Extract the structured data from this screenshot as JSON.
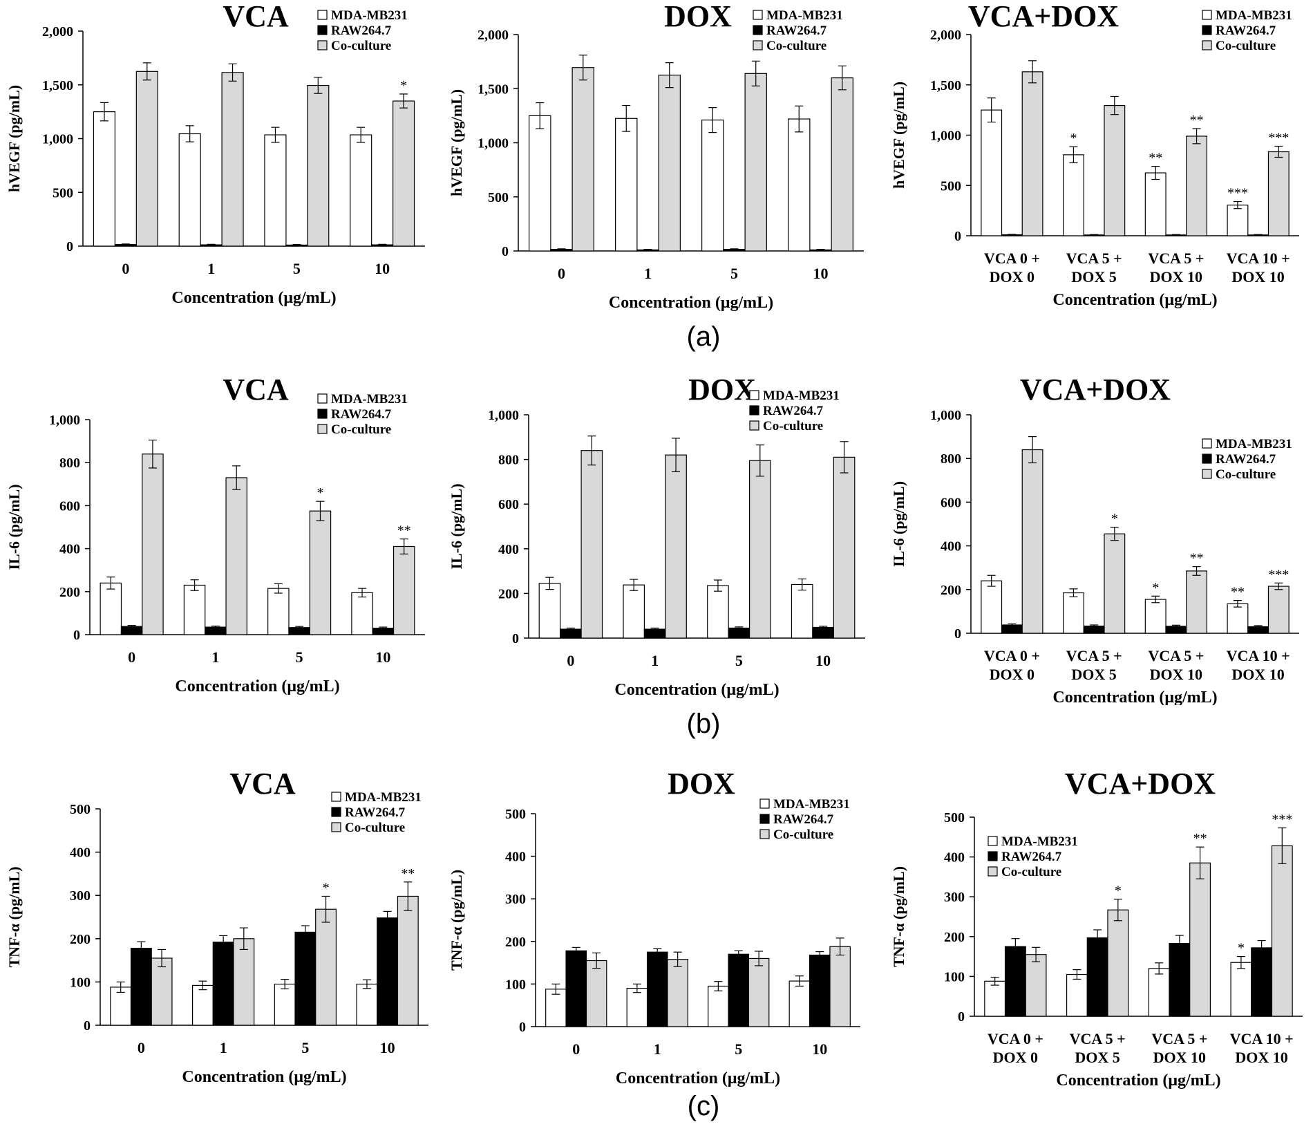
{
  "colors": {
    "mda": "#ffffff",
    "raw": "#000000",
    "co": "#d9d9d9",
    "axis": "#000000",
    "text": "#000000"
  },
  "sections": [
    {
      "label": "(a)"
    },
    {
      "label": "(b)"
    },
    {
      "label": "(c)"
    }
  ],
  "chart_data": [
    {
      "id": "a-vca",
      "type": "bar",
      "title": "VCA",
      "xlabel": "Concentration (μg/mL)",
      "ylabel": "hVEGF (pg/mL)",
      "categories": [
        "0",
        "1",
        "5",
        "10"
      ],
      "ylim": [
        0,
        2000
      ],
      "yticks": [
        "0",
        "500",
        "1,000",
        "1,500",
        "2,000"
      ],
      "ytick_values": [
        0,
        500,
        1000,
        1500,
        2000
      ],
      "legend": [
        "MDA-MB231",
        "RAW264.7",
        "Co-culture"
      ],
      "legend_position": "top-right",
      "series": [
        {
          "name": "MDA-MB231",
          "values": [
            1250,
            1045,
            1035,
            1035
          ],
          "errors": [
            85,
            75,
            70,
            70
          ],
          "stars": [
            "",
            "",
            "",
            ""
          ]
        },
        {
          "name": "RAW264.7",
          "values": [
            15,
            12,
            10,
            12
          ],
          "errors": [
            5,
            5,
            5,
            5
          ],
          "stars": [
            "",
            "",
            "",
            ""
          ]
        },
        {
          "name": "Co-culture",
          "values": [
            1625,
            1615,
            1495,
            1350
          ],
          "errors": [
            80,
            80,
            75,
            65
          ],
          "stars": [
            "",
            "",
            "",
            "*"
          ]
        }
      ]
    },
    {
      "id": "a-dox",
      "type": "bar",
      "title": "DOX",
      "xlabel": "Concentration (μg/mL)",
      "ylabel": "hVEGF (pg/mL)",
      "categories": [
        "0",
        "1",
        "5",
        "10"
      ],
      "ylim": [
        0,
        2000
      ],
      "yticks": [
        "0",
        "500",
        "1,000",
        "1,500",
        "2,000"
      ],
      "ytick_values": [
        0,
        500,
        1000,
        1500,
        2000
      ],
      "legend": [
        "MDA-MB231",
        "RAW264.7",
        "Co-culture"
      ],
      "legend_position": "top-right",
      "series": [
        {
          "name": "MDA-MB231",
          "values": [
            1250,
            1225,
            1210,
            1220
          ],
          "errors": [
            120,
            120,
            115,
            120
          ],
          "stars": [
            "",
            "",
            "",
            ""
          ]
        },
        {
          "name": "RAW264.7",
          "values": [
            15,
            10,
            15,
            10
          ],
          "errors": [
            5,
            5,
            5,
            5
          ],
          "stars": [
            "",
            "",
            "",
            ""
          ]
        },
        {
          "name": "Co-culture",
          "values": [
            1695,
            1625,
            1640,
            1600
          ],
          "errors": [
            115,
            115,
            115,
            110
          ],
          "stars": [
            "",
            "",
            "",
            ""
          ]
        }
      ]
    },
    {
      "id": "a-combo",
      "type": "bar",
      "title": "VCA+DOX",
      "xlabel": "Concentration (μg/mL)",
      "ylabel": "hVEGF (pg/mL)",
      "categories": [
        "VCA 0 +|DOX 0",
        "VCA 5 +|DOX 5",
        "VCA 5 +|DOX 10",
        "VCA 10 +|DOX 10"
      ],
      "ylim": [
        0,
        2000
      ],
      "yticks": [
        "0",
        "500",
        "1,000",
        "1,500",
        "2,000"
      ],
      "ytick_values": [
        0,
        500,
        1000,
        1500,
        2000
      ],
      "legend": [
        "MDA-MB231",
        "RAW264.7",
        "Co-culture"
      ],
      "legend_position": "top-right",
      "series": [
        {
          "name": "MDA-MB231",
          "values": [
            1250,
            805,
            625,
            305
          ],
          "errors": [
            120,
            80,
            65,
            35
          ],
          "stars": [
            "",
            "*",
            "**",
            "***"
          ]
        },
        {
          "name": "RAW264.7",
          "values": [
            10,
            8,
            8,
            8
          ],
          "errors": [
            4,
            4,
            4,
            4
          ],
          "stars": [
            "",
            "",
            "",
            ""
          ]
        },
        {
          "name": "Co-culture",
          "values": [
            1630,
            1295,
            990,
            835
          ],
          "errors": [
            110,
            90,
            75,
            55
          ],
          "stars": [
            "",
            "",
            "**",
            "***"
          ]
        }
      ]
    },
    {
      "id": "b-vca",
      "type": "bar",
      "title": "VCA",
      "xlabel": "Concentration (μg/mL)",
      "ylabel": "IL-6 (pg/mL)",
      "categories": [
        "0",
        "1",
        "5",
        "10"
      ],
      "ylim": [
        0,
        1000
      ],
      "yticks": [
        "0",
        "200",
        "400",
        "600",
        "800",
        "1,000"
      ],
      "ytick_values": [
        0,
        200,
        400,
        600,
        800,
        1000
      ],
      "legend": [
        "MDA-MB231",
        "RAW264.7",
        "Co-culture"
      ],
      "legend_position": "top-right",
      "series": [
        {
          "name": "MDA-MB231",
          "values": [
            240,
            230,
            215,
            195
          ],
          "errors": [
            28,
            25,
            22,
            20
          ],
          "stars": [
            "",
            "",
            "",
            ""
          ]
        },
        {
          "name": "RAW264.7",
          "values": [
            38,
            35,
            33,
            30
          ],
          "errors": [
            5,
            5,
            5,
            5
          ],
          "stars": [
            "",
            "",
            "",
            ""
          ]
        },
        {
          "name": "Co-culture",
          "values": [
            840,
            730,
            575,
            410
          ],
          "errors": [
            65,
            55,
            45,
            35
          ],
          "stars": [
            "",
            "",
            "*",
            "**"
          ]
        }
      ]
    },
    {
      "id": "b-dox",
      "type": "bar",
      "title": "DOX",
      "xlabel": "Concentration (μg/mL)",
      "ylabel": "IL-6 (pg/mL)",
      "categories": [
        "0",
        "1",
        "5",
        "10"
      ],
      "ylim": [
        0,
        1000
      ],
      "yticks": [
        "0",
        "200",
        "400",
        "600",
        "800",
        "1,000"
      ],
      "ytick_values": [
        0,
        200,
        400,
        600,
        800,
        1000
      ],
      "legend": [
        "MDA-MB231",
        "RAW264.7",
        "Co-culture"
      ],
      "legend_position": "top-right",
      "series": [
        {
          "name": "MDA-MB231",
          "values": [
            245,
            238,
            235,
            240
          ],
          "errors": [
            27,
            25,
            25,
            25
          ],
          "stars": [
            "",
            "",
            "",
            ""
          ]
        },
        {
          "name": "RAW264.7",
          "values": [
            40,
            40,
            45,
            48
          ],
          "errors": [
            5,
            5,
            5,
            5
          ],
          "stars": [
            "",
            "",
            "",
            ""
          ]
        },
        {
          "name": "Co-culture",
          "values": [
            840,
            820,
            795,
            810
          ],
          "errors": [
            65,
            75,
            70,
            70
          ],
          "stars": [
            "",
            "",
            "",
            ""
          ]
        }
      ]
    },
    {
      "id": "b-combo",
      "type": "bar",
      "title": "VCA+DOX",
      "xlabel": "Concentration (μg/mL)",
      "ylabel": "IL-6 (pg/mL)",
      "categories": [
        "VCA 0 +|DOX 0",
        "VCA 5 +|DOX 5",
        "VCA 5 +|DOX 10",
        "VCA 10 +|DOX 10"
      ],
      "ylim": [
        0,
        1000
      ],
      "yticks": [
        "0",
        "200",
        "400",
        "600",
        "800",
        "1,000"
      ],
      "ytick_values": [
        0,
        200,
        400,
        600,
        800,
        1000
      ],
      "legend": [
        "MDA-MB231",
        "RAW264.7",
        "Co-culture"
      ],
      "legend_position": "middle-right",
      "series": [
        {
          "name": "MDA-MB231",
          "values": [
            240,
            185,
            155,
            135
          ],
          "errors": [
            25,
            18,
            15,
            15
          ],
          "stars": [
            "",
            "",
            "*",
            "**"
          ]
        },
        {
          "name": "RAW264.7",
          "values": [
            38,
            33,
            32,
            30
          ],
          "errors": [
            5,
            5,
            5,
            5
          ],
          "stars": [
            "",
            "",
            "",
            ""
          ]
        },
        {
          "name": "Co-culture",
          "values": [
            840,
            455,
            285,
            215
          ],
          "errors": [
            60,
            30,
            20,
            15
          ],
          "stars": [
            "",
            "*",
            "**",
            "***"
          ]
        }
      ]
    },
    {
      "id": "c-vca",
      "type": "bar",
      "title": "VCA",
      "xlabel": "Concentration (μg/mL)",
      "ylabel": "TNF-α (pg/mL)",
      "categories": [
        "0",
        "1",
        "5",
        "10"
      ],
      "ylim": [
        0,
        500
      ],
      "yticks": [
        "0",
        "100",
        "200",
        "300",
        "400",
        "500"
      ],
      "ytick_values": [
        0,
        100,
        200,
        300,
        400,
        500
      ],
      "legend": [
        "MDA-MB231",
        "RAW264.7",
        "Co-culture"
      ],
      "legend_position": "top-right",
      "series": [
        {
          "name": "MDA-MB231",
          "values": [
            88,
            92,
            95,
            95
          ],
          "errors": [
            12,
            10,
            11,
            10
          ],
          "stars": [
            "",
            "",
            "",
            ""
          ]
        },
        {
          "name": "RAW264.7",
          "values": [
            178,
            192,
            215,
            248
          ],
          "errors": [
            15,
            15,
            15,
            15
          ],
          "stars": [
            "",
            "",
            "",
            ""
          ]
        },
        {
          "name": "Co-culture",
          "values": [
            155,
            200,
            268,
            298
          ],
          "errors": [
            20,
            25,
            30,
            33
          ],
          "stars": [
            "",
            "",
            "*",
            "**"
          ]
        }
      ]
    },
    {
      "id": "c-dox",
      "type": "bar",
      "title": "DOX",
      "xlabel": "Concentration (μg/mL)",
      "ylabel": "TNF-α (pg/mL)",
      "categories": [
        "0",
        "1",
        "5",
        "10"
      ],
      "ylim": [
        0,
        500
      ],
      "yticks": [
        "0",
        "100",
        "200",
        "300",
        "400",
        "500"
      ],
      "ytick_values": [
        0,
        100,
        200,
        300,
        400,
        500
      ],
      "legend": [
        "MDA-MB231",
        "RAW264.7",
        "Co-culture"
      ],
      "legend_position": "top-right",
      "series": [
        {
          "name": "MDA-MB231",
          "values": [
            88,
            90,
            95,
            107
          ],
          "errors": [
            12,
            10,
            11,
            12
          ],
          "stars": [
            "",
            "",
            "",
            ""
          ]
        },
        {
          "name": "RAW264.7",
          "values": [
            178,
            175,
            170,
            168
          ],
          "errors": [
            8,
            8,
            8,
            8
          ],
          "stars": [
            "",
            "",
            "",
            ""
          ]
        },
        {
          "name": "Co-culture",
          "values": [
            155,
            158,
            160,
            188
          ],
          "errors": [
            18,
            17,
            17,
            20
          ],
          "stars": [
            "",
            "",
            "",
            ""
          ]
        }
      ]
    },
    {
      "id": "c-combo",
      "type": "bar",
      "title": "VCA+DOX",
      "xlabel": "Concentration (μg/mL)",
      "ylabel": "TNF-α (pg/mL)",
      "categories": [
        "VCA 0 +|DOX 0",
        "VCA 5 +|DOX 5",
        "VCA 5 +|DOX 10",
        "VCA 10 +|DOX 10"
      ],
      "ylim": [
        0,
        500
      ],
      "yticks": [
        "0",
        "100",
        "200",
        "300",
        "400",
        "500"
      ],
      "ytick_values": [
        0,
        100,
        200,
        300,
        400,
        500
      ],
      "legend": [
        "MDA-MB231",
        "RAW264.7",
        "Co-culture"
      ],
      "legend_position": "top-left",
      "series": [
        {
          "name": "MDA-MB231",
          "values": [
            88,
            105,
            120,
            135
          ],
          "errors": [
            10,
            12,
            14,
            15
          ],
          "stars": [
            "",
            "",
            "",
            "*"
          ]
        },
        {
          "name": "RAW264.7",
          "values": [
            175,
            197,
            183,
            172
          ],
          "errors": [
            20,
            20,
            20,
            18
          ],
          "stars": [
            "",
            "",
            "",
            ""
          ]
        },
        {
          "name": "Co-culture",
          "values": [
            155,
            267,
            385,
            428
          ],
          "errors": [
            18,
            27,
            40,
            45
          ],
          "stars": [
            "",
            "*",
            "**",
            "***"
          ]
        }
      ]
    }
  ]
}
